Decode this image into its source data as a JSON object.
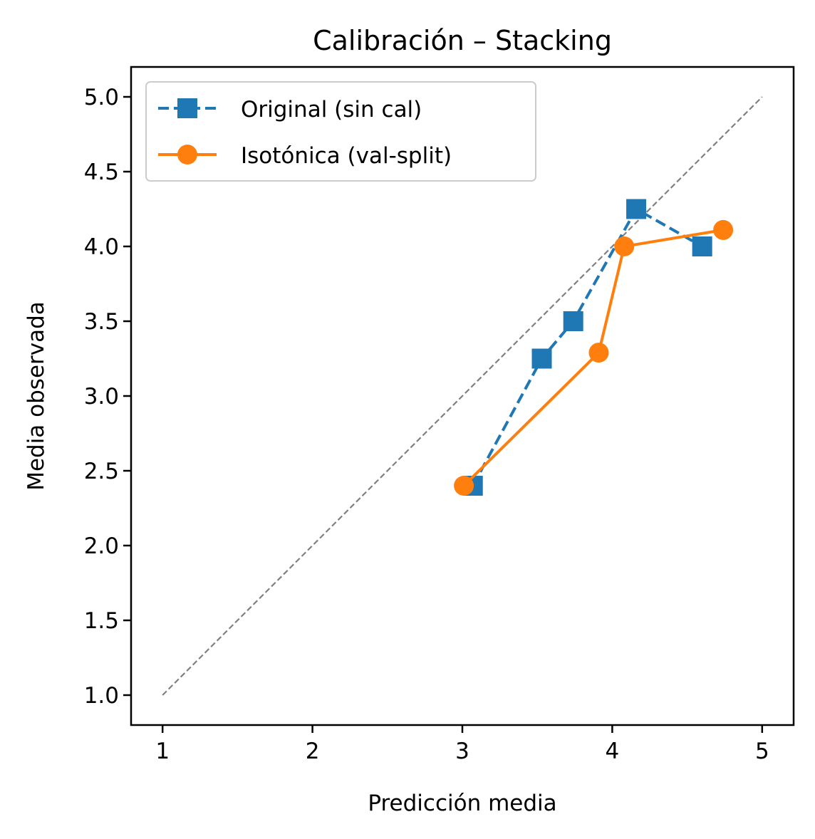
{
  "chart_data": {
    "type": "line",
    "title": "Calibración – Stacking",
    "xlabel": "Predicción media",
    "ylabel": "Media observada",
    "xlim": [
      0.79,
      5.21
    ],
    "ylim": [
      0.8,
      5.2
    ],
    "xticks": [
      "1",
      "2",
      "3",
      "4",
      "5"
    ],
    "yticks": [
      "1.0",
      "1.5",
      "2.0",
      "2.5",
      "3.0",
      "3.5",
      "4.0",
      "4.5",
      "5.0"
    ],
    "grid": false,
    "legend_position": "top-left",
    "reference_line": {
      "from": [
        1,
        1
      ],
      "to": [
        5,
        5
      ],
      "color": "#808080",
      "style": "dashed"
    },
    "series": [
      {
        "name": "Original (sin cal)",
        "color": "#1f77b4",
        "line_style": "dashed",
        "marker": "square",
        "x": [
          3.07,
          3.53,
          3.74,
          4.16,
          4.6
        ],
        "y": [
          2.4,
          3.25,
          3.5,
          4.25,
          4.0
        ]
      },
      {
        "name": "Isotónica (val-split)",
        "color": "#ff7f0e",
        "line_style": "solid",
        "marker": "circle",
        "x": [
          3.01,
          3.91,
          4.08,
          4.74
        ],
        "y": [
          2.4,
          3.29,
          4.0,
          4.11
        ]
      }
    ]
  }
}
